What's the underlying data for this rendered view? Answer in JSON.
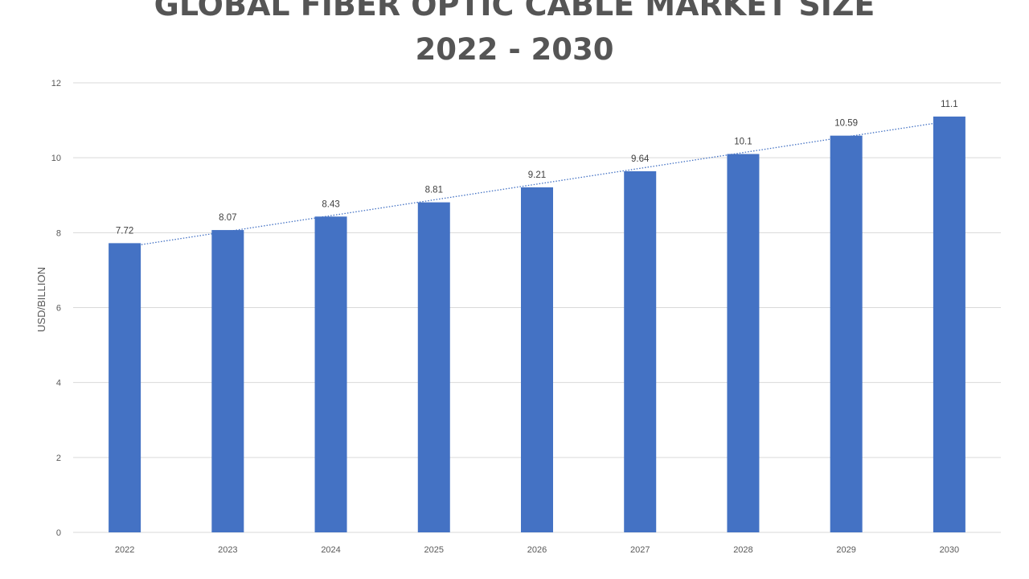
{
  "chart_data": {
    "type": "bar",
    "title": "GLOBAL FIBER OPTIC CABLE MARKET SIZE",
    "subtitle": "2022 - 2030",
    "xlabel": "",
    "ylabel": "USD/BILLION",
    "ylim": [
      0,
      12
    ],
    "yticks": [
      0,
      2,
      4,
      6,
      8,
      10,
      12
    ],
    "categories": [
      "2022",
      "2023",
      "2024",
      "2025",
      "2026",
      "2027",
      "2028",
      "2029",
      "2030"
    ],
    "series": [
      {
        "values": [
          7.72,
          8.07,
          8.43,
          8.81,
          9.21,
          9.64,
          10.1,
          10.59,
          11.1
        ]
      }
    ],
    "data_labels": [
      "7.72",
      "8.07",
      "8.43",
      "8.81",
      "9.21",
      "9.64",
      "10.1",
      "10.59",
      "11.1"
    ],
    "trendline": "linear",
    "grid": true,
    "colors": {
      "bar": "#4472C4",
      "trend": "#4472C4",
      "grid": "#D9D9D9"
    }
  }
}
